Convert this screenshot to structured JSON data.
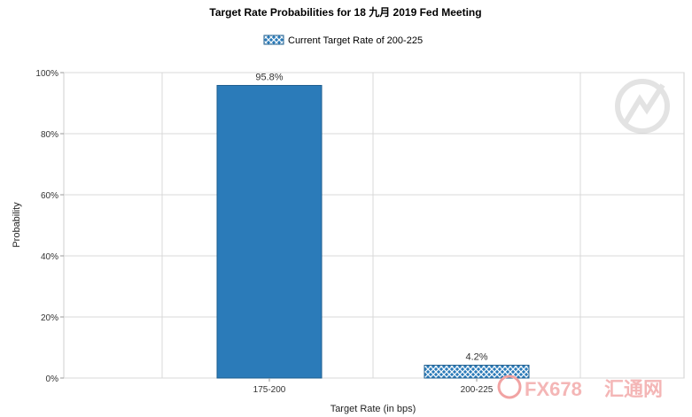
{
  "chart_data": {
    "type": "bar",
    "title": "Target Rate Probabilities for 18 九月 2019  Fed Meeting",
    "legend": [
      {
        "name": "Current Target Rate of 200-225",
        "pattern": "crosshatch",
        "color": "#2b7bb9"
      }
    ],
    "legend_position": "top-center",
    "xlabel": "Target Rate (in bps)",
    "ylabel": "Probability",
    "categories": [
      "175-200",
      "200-225"
    ],
    "values": [
      95.8,
      4.2
    ],
    "data_labels": [
      "95.8%",
      "4.2%"
    ],
    "bar_styles": [
      "solid",
      "crosshatch"
    ],
    "ylim": [
      0,
      100
    ],
    "yticks": [
      0,
      20,
      40,
      60,
      80,
      100
    ],
    "ytick_labels": [
      "0%",
      "20%",
      "40%",
      "60%",
      "80%",
      "100%"
    ],
    "grid": true,
    "colors": {
      "bar": "#2b7bb9",
      "bar_edge": "#1f5f8f",
      "grid": "#d9d9d9",
      "axis": "#999999"
    }
  },
  "watermark": {
    "text": "FX678",
    "subtext": "汇通网"
  }
}
